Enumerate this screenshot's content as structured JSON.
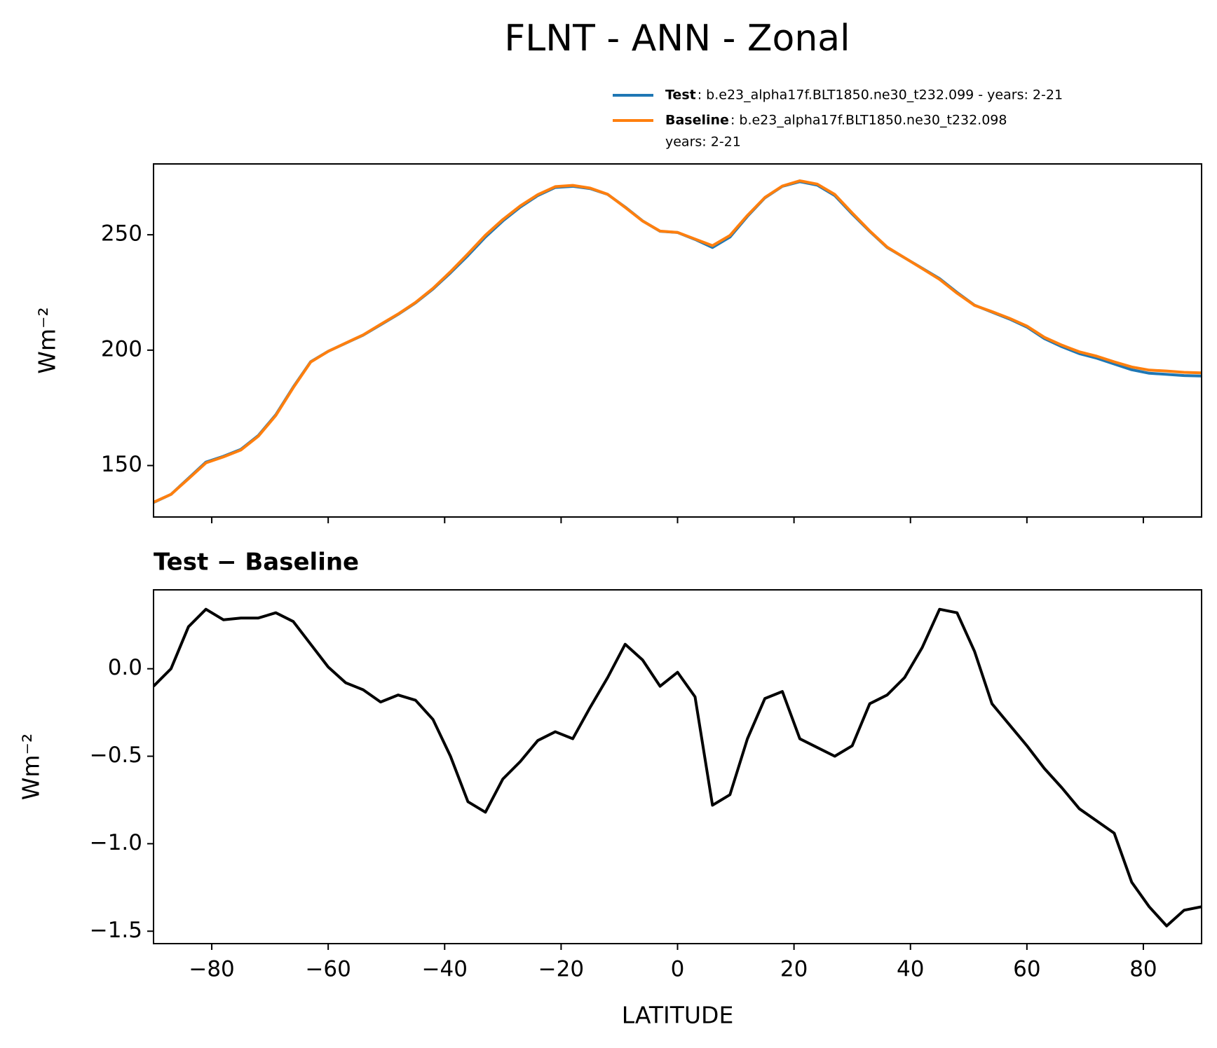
{
  "title": "FLNT - ANN - Zonal",
  "chart_data": [
    {
      "type": "line",
      "x": [
        -90,
        -87,
        -84,
        -81,
        -78,
        -75,
        -72,
        -69,
        -66,
        -63,
        -60,
        -57,
        -54,
        -51,
        -48,
        -45,
        -42,
        -39,
        -36,
        -33,
        -30,
        -27,
        -24,
        -21,
        -18,
        -15,
        -12,
        -9,
        -6,
        -3,
        0,
        3,
        6,
        9,
        12,
        15,
        18,
        21,
        24,
        27,
        30,
        33,
        36,
        39,
        42,
        45,
        48,
        51,
        54,
        57,
        60,
        63,
        66,
        69,
        72,
        75,
        78,
        81,
        84,
        87,
        90
      ],
      "series": [
        {
          "name": "Test",
          "description": [
            ": b.e23_alpha17f.BLT1850.ne30_t232.099 - years: 2-21"
          ],
          "color": "#1f77b4",
          "values": [
            134,
            137.5,
            144.5,
            151.5,
            154,
            157,
            163,
            172,
            184,
            195,
            199.5,
            203,
            206.5,
            211,
            215.5,
            220.5,
            226.5,
            233.5,
            241,
            249,
            256,
            262,
            267,
            270.5,
            271,
            270,
            267.5,
            262,
            256,
            251.5,
            251,
            248,
            244.5,
            249,
            258,
            266,
            271,
            273,
            271.5,
            267,
            259,
            251.5,
            244.5,
            240,
            235.5,
            231,
            225,
            219.5,
            216.5,
            213.5,
            210,
            205,
            201.5,
            198.5,
            196.5,
            194,
            191.5,
            190,
            189.5,
            189,
            188.8
          ]
        },
        {
          "name": "Baseline",
          "description": [
            ": b.e23_alpha17f.BLT1850.ne30_t232.098",
            "years: 2-21"
          ],
          "color": "#ff7f0e",
          "values": [
            134.1,
            137.5,
            144.26,
            151.16,
            153.72,
            156.71,
            162.71,
            171.68,
            183.73,
            194.86,
            199.49,
            203.08,
            206.62,
            211.19,
            215.65,
            220.68,
            226.79,
            234.0,
            241.76,
            249.82,
            256.63,
            262.53,
            267.41,
            270.86,
            271.4,
            270.22,
            267.55,
            261.86,
            255.95,
            251.6,
            251.02,
            248.16,
            245.28,
            249.72,
            258.4,
            266.17,
            271.13,
            273.4,
            271.95,
            267.5,
            259.44,
            251.7,
            244.65,
            240.05,
            235.38,
            230.66,
            224.68,
            219.4,
            216.7,
            213.82,
            210.44,
            205.57,
            202.18,
            199.3,
            197.37,
            194.94,
            192.72,
            191.36,
            190.97,
            190.38,
            190.16
          ]
        }
      ],
      "ylabel": "Wm⁻²",
      "xlim": [
        -90,
        90
      ],
      "ylim": [
        127.7,
        280.7
      ],
      "xticks": [
        -80,
        -60,
        -40,
        -20,
        0,
        20,
        40,
        60,
        80
      ],
      "xticklabels": false,
      "yticks": [
        150,
        200,
        250
      ],
      "legend": "above right"
    },
    {
      "type": "line",
      "title": "Test − Baseline",
      "x": [
        -90,
        -87,
        -84,
        -81,
        -78,
        -75,
        -72,
        -69,
        -66,
        -63,
        -60,
        -57,
        -54,
        -51,
        -48,
        -45,
        -42,
        -39,
        -36,
        -33,
        -30,
        -27,
        -24,
        -21,
        -18,
        -15,
        -12,
        -9,
        -6,
        -3,
        0,
        3,
        6,
        9,
        12,
        15,
        18,
        21,
        24,
        27,
        30,
        33,
        36,
        39,
        42,
        45,
        48,
        51,
        54,
        57,
        60,
        63,
        66,
        69,
        72,
        75,
        78,
        81,
        84,
        87,
        90
      ],
      "series": [
        {
          "color": "#000000",
          "values": [
            -0.1,
            0.0,
            0.24,
            0.34,
            0.28,
            0.29,
            0.29,
            0.32,
            0.27,
            0.14,
            0.01,
            -0.08,
            -0.12,
            -0.19,
            -0.15,
            -0.18,
            -0.29,
            -0.5,
            -0.76,
            -0.82,
            -0.63,
            -0.53,
            -0.41,
            -0.36,
            -0.4,
            -0.22,
            -0.05,
            0.14,
            0.05,
            -0.1,
            -0.02,
            -0.16,
            -0.78,
            -0.72,
            -0.4,
            -0.17,
            -0.13,
            -0.4,
            -0.45,
            -0.5,
            -0.44,
            -0.2,
            -0.15,
            -0.05,
            0.12,
            0.34,
            0.32,
            0.1,
            -0.2,
            -0.32,
            -0.44,
            -0.57,
            -0.68,
            -0.8,
            -0.87,
            -0.94,
            -1.22,
            -1.36,
            -1.47,
            -1.38,
            -1.36
          ]
        }
      ],
      "xlabel": "LATITUDE",
      "ylabel": "Wm⁻²",
      "xlim": [
        -90,
        90
      ],
      "ylim": [
        -1.571,
        0.451
      ],
      "xticks": [
        {
          "value": -80,
          "label": "−80"
        },
        {
          "value": -60,
          "label": "−60"
        },
        {
          "value": -40,
          "label": "−40"
        },
        {
          "value": -20,
          "label": "−20"
        },
        0,
        20,
        40,
        60,
        80
      ],
      "yticks": [
        {
          "value": -1.5,
          "label": "−1.5"
        },
        {
          "value": -1.0,
          "label": "−1.0"
        },
        {
          "value": -0.5,
          "label": "−0.5"
        },
        {
          "value": 0,
          "label": "0.0"
        }
      ]
    }
  ]
}
